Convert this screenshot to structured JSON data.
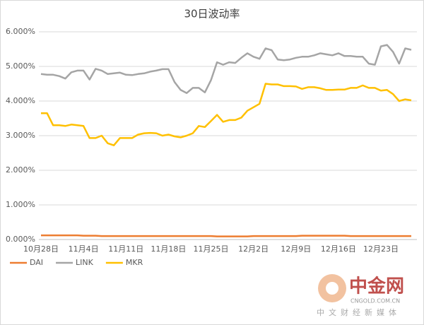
{
  "chart_data": {
    "type": "line",
    "title": "30日波动率",
    "categories": [
      "10月28日",
      null,
      null,
      null,
      null,
      null,
      null,
      "11月4日",
      null,
      null,
      null,
      null,
      null,
      null,
      "11月11日",
      null,
      null,
      null,
      null,
      null,
      null,
      "11月18日",
      null,
      null,
      null,
      null,
      null,
      null,
      "11月25日",
      null,
      null,
      null,
      null,
      null,
      null,
      "12月2日",
      null,
      null,
      null,
      null,
      null,
      null,
      "12月9日",
      null,
      null,
      null,
      null,
      null,
      null,
      "12月16日",
      null,
      null,
      null,
      null,
      null,
      null,
      "12月23日",
      null,
      null,
      null,
      null,
      null
    ],
    "series": [
      {
        "name": "DAI",
        "color": "#ed7d31",
        "values": [
          0.12,
          0.12,
          0.12,
          0.12,
          0.12,
          0.12,
          0.12,
          0.11,
          0.11,
          0.11,
          0.1,
          0.1,
          0.1,
          0.1,
          0.1,
          0.1,
          0.1,
          0.1,
          0.1,
          0.1,
          0.1,
          0.1,
          0.1,
          0.1,
          0.1,
          0.1,
          0.1,
          0.1,
          0.1,
          0.09,
          0.09,
          0.09,
          0.09,
          0.09,
          0.09,
          0.1,
          0.1,
          0.1,
          0.1,
          0.1,
          0.1,
          0.1,
          0.1,
          0.11,
          0.11,
          0.11,
          0.11,
          0.11,
          0.11,
          0.11,
          0.11,
          0.1,
          0.1,
          0.1,
          0.1,
          0.1,
          0.1,
          0.1,
          0.1,
          0.1,
          0.1,
          0.1
        ]
      },
      {
        "name": "LINK",
        "color": "#a5a5a5",
        "values": [
          4.78,
          4.76,
          4.76,
          4.72,
          4.65,
          4.83,
          4.88,
          4.88,
          4.62,
          4.93,
          4.88,
          4.78,
          4.8,
          4.82,
          4.76,
          4.75,
          4.78,
          4.8,
          4.85,
          4.88,
          4.92,
          4.92,
          4.55,
          4.32,
          4.23,
          4.38,
          4.38,
          4.25,
          4.6,
          5.12,
          5.05,
          5.12,
          5.1,
          5.25,
          5.38,
          5.28,
          5.22,
          5.52,
          5.47,
          5.2,
          5.18,
          5.2,
          5.25,
          5.28,
          5.28,
          5.32,
          5.38,
          5.35,
          5.32,
          5.38,
          5.3,
          5.3,
          5.28,
          5.28,
          5.08,
          5.05,
          5.58,
          5.62,
          5.42,
          5.08,
          5.52,
          5.48
        ]
      },
      {
        "name": "MKR",
        "color": "#ffc000",
        "values": [
          3.65,
          3.65,
          3.3,
          3.3,
          3.28,
          3.32,
          3.3,
          3.28,
          2.93,
          2.93,
          3.0,
          2.78,
          2.72,
          2.93,
          2.93,
          2.93,
          3.03,
          3.07,
          3.08,
          3.07,
          3.0,
          3.03,
          2.98,
          2.95,
          3.0,
          3.07,
          3.28,
          3.25,
          3.42,
          3.6,
          3.4,
          3.45,
          3.45,
          3.52,
          3.72,
          3.82,
          3.92,
          4.5,
          4.48,
          4.48,
          4.43,
          4.43,
          4.42,
          4.35,
          4.4,
          4.4,
          4.37,
          4.32,
          4.32,
          4.33,
          4.33,
          4.38,
          4.38,
          4.45,
          4.38,
          4.38,
          4.3,
          4.32,
          4.2,
          4.0,
          4.05,
          4.02
        ]
      }
    ],
    "ylim": [
      0,
      6
    ],
    "yticks": [
      {
        "value": 0,
        "label": "0.000%"
      },
      {
        "value": 1,
        "label": "1.000%"
      },
      {
        "value": 2,
        "label": "2.000%"
      },
      {
        "value": 3,
        "label": "3.000%"
      },
      {
        "value": 4,
        "label": "4.000%"
      },
      {
        "value": 5,
        "label": "5.000%"
      },
      {
        "value": 6,
        "label": "6.000%"
      }
    ],
    "grid": true,
    "legend": "bottom-left"
  },
  "watermark": {
    "brand": "中金网",
    "url": "CNGOLD.COM.CN",
    "slogan": "中文财经新媒体"
  }
}
